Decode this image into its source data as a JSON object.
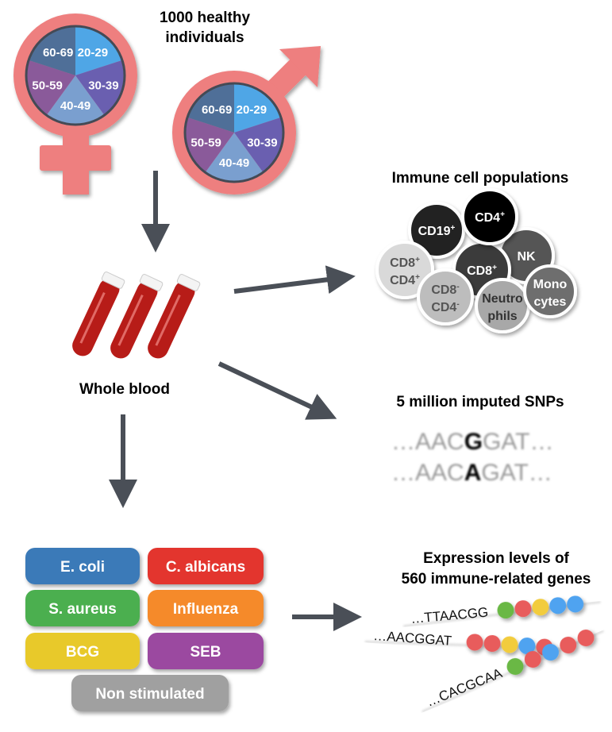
{
  "title": [
    "1000 healthy",
    "individuals"
  ],
  "age_groups": [
    "20-29",
    "30-39",
    "40-49",
    "50-59",
    "60-69"
  ],
  "age_colors": [
    "#4fa6e6",
    "#6a5fb0",
    "#7a9fcf",
    "#8a5a9a",
    "#4f6f98"
  ],
  "symbol_color": "#ee7f7f",
  "arrow_color": "#4a4f57",
  "whole_blood": "Whole blood",
  "immune": {
    "title": "Immune cell populations",
    "cells": [
      {
        "line1": "CD19",
        "sup1": "+",
        "fill": "#222222",
        "text": "#ffffff"
      },
      {
        "line1": "NK",
        "fill": "#555555",
        "text": "#ffffff"
      },
      {
        "line1": "CD8",
        "sup1": "+",
        "line2": "CD4",
        "sup2": "+",
        "fill": "#d9d9d9",
        "text": "#555555"
      },
      {
        "line1": "CD8",
        "sup1": "+",
        "fill": "#3a3a3a",
        "text": "#ffffff"
      },
      {
        "line1": "CD4",
        "sup1": "+",
        "fill": "#000000",
        "text": "#ffffff"
      },
      {
        "line1": "CD8",
        "sup1": "-",
        "line2": "CD4",
        "sup2": "-",
        "fill": "#bdbdbd",
        "text": "#555555"
      },
      {
        "line1": "Neutro",
        "line2": "phils",
        "fill": "#a8a8a8",
        "text": "#333333"
      },
      {
        "line1": "Mono",
        "line2": "cytes",
        "fill": "#6e6e6e",
        "text": "#ffffff"
      }
    ]
  },
  "snps": {
    "title": "5 million imputed SNPs",
    "row1": {
      "pre": "…AAC",
      "snp": "G",
      "post": "GAT…"
    },
    "row2": {
      "pre": "…AAC",
      "snp": "A",
      "post": "GAT…"
    }
  },
  "stimuli": [
    {
      "label": "E. coli",
      "color": "#3a7ab8"
    },
    {
      "label": "C. albicans",
      "color": "#e3342f"
    },
    {
      "label": "S. aureus",
      "color": "#4caf50"
    },
    {
      "label": "Influenza",
      "color": "#f58a2a"
    },
    {
      "label": "BCG",
      "color": "#e8c92a"
    },
    {
      "label": "SEB",
      "color": "#9b4aa0"
    },
    {
      "label": "Non stimulated",
      "color": "#a0a0a0"
    }
  ],
  "expression": {
    "title": [
      "Expression levels of",
      "560 immune-related genes"
    ],
    "rows": [
      {
        "seq": "…TTAACGG",
        "dots": [
          "#6ab845",
          "#e85b5b",
          "#f2cc3c",
          "#4fa3f0",
          "#4fa3f0"
        ]
      },
      {
        "seq": "…AACGGAT",
        "dots": [
          "#e85b5b",
          "#e85b5b",
          "#f2cc3c",
          "#4fa3f0",
          "#e85b5b"
        ]
      },
      {
        "seq": "…CACGCAA",
        "dots": [
          "#6ab845",
          "#e85b5b",
          "#4fa3f0",
          "#e85b5b",
          "#e85b5b"
        ]
      }
    ]
  }
}
